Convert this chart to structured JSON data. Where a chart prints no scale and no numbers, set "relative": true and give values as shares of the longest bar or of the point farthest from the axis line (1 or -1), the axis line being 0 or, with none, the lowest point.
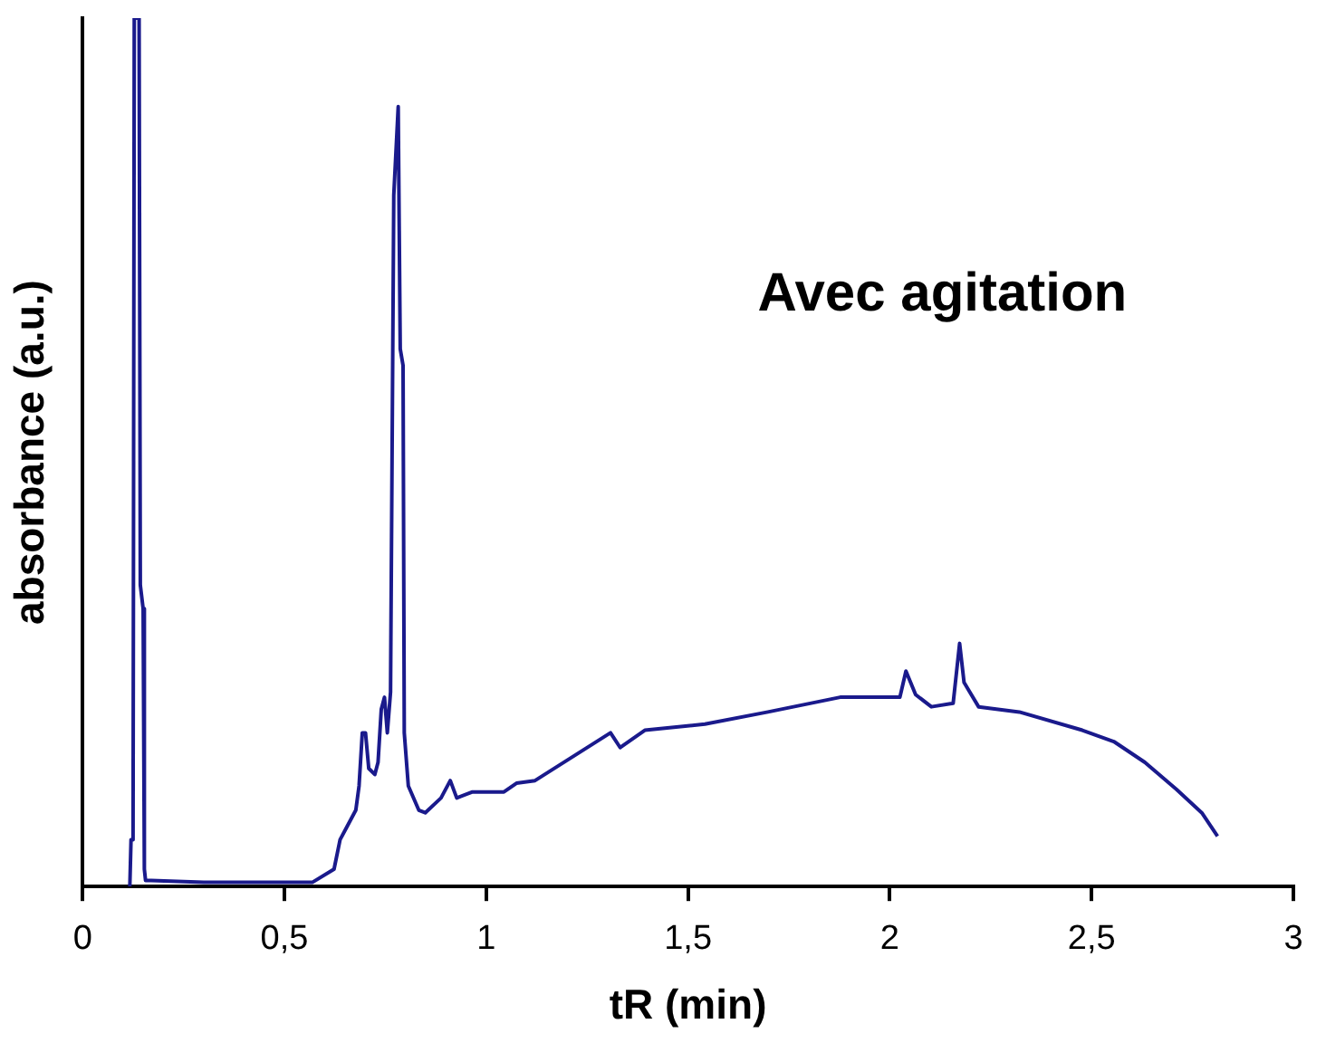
{
  "chart_data": {
    "type": "line",
    "title": "Avec agitation",
    "xlabel": "tR (min)",
    "ylabel": "absorbance (a.u.)",
    "relative": true,
    "grid": false,
    "legend": false,
    "marker": "none",
    "line_style": "solid",
    "xlim": [
      0,
      3
    ],
    "xticks": [
      0,
      {
        "value": 0.5,
        "label": "0,5"
      },
      1,
      {
        "value": 1.5,
        "label": "1,5"
      },
      2,
      {
        "value": 2.5,
        "label": "2,5"
      },
      3
    ],
    "series": [
      {
        "color": "#1a1a8c",
        "x": [
          0.117,
          0.12,
          0.125,
          0.128,
          0.14,
          0.143,
          0.15,
          0.153,
          0.156,
          0.17,
          0.3,
          0.45,
          0.57,
          0.623,
          0.638,
          0.654,
          0.677,
          0.685,
          0.693,
          0.701,
          0.709,
          0.724,
          0.732,
          0.74,
          0.748,
          0.755,
          0.763,
          0.771,
          0.782,
          0.787,
          0.794,
          0.797,
          0.807,
          0.833,
          0.849,
          0.888,
          0.911,
          0.927,
          0.966,
          1.044,
          1.075,
          1.121,
          1.308,
          1.332,
          1.393,
          1.542,
          1.698,
          1.877,
          2.025,
          2.04,
          2.064,
          2.103,
          2.157,
          2.173,
          2.184,
          2.22,
          2.321,
          2.477,
          2.555,
          2.632,
          2.71,
          2.773,
          2.812
        ],
        "values": [
          0.0,
          0.054,
          0.054,
          1.0,
          1.0,
          0.347,
          0.32,
          0.02,
          0.007,
          0.007,
          0.005,
          0.005,
          0.005,
          0.02,
          0.054,
          0.068,
          0.088,
          0.116,
          0.177,
          0.177,
          0.136,
          0.129,
          0.143,
          0.204,
          0.218,
          0.177,
          0.224,
          0.796,
          0.898,
          0.619,
          0.6,
          0.177,
          0.116,
          0.088,
          0.085,
          0.102,
          0.122,
          0.102,
          0.109,
          0.109,
          0.119,
          0.122,
          0.177,
          0.16,
          0.18,
          0.187,
          0.201,
          0.218,
          0.218,
          0.248,
          0.221,
          0.207,
          0.211,
          0.28,
          0.235,
          0.207,
          0.201,
          0.18,
          0.167,
          0.143,
          0.112,
          0.085,
          0.058
        ]
      }
    ]
  }
}
